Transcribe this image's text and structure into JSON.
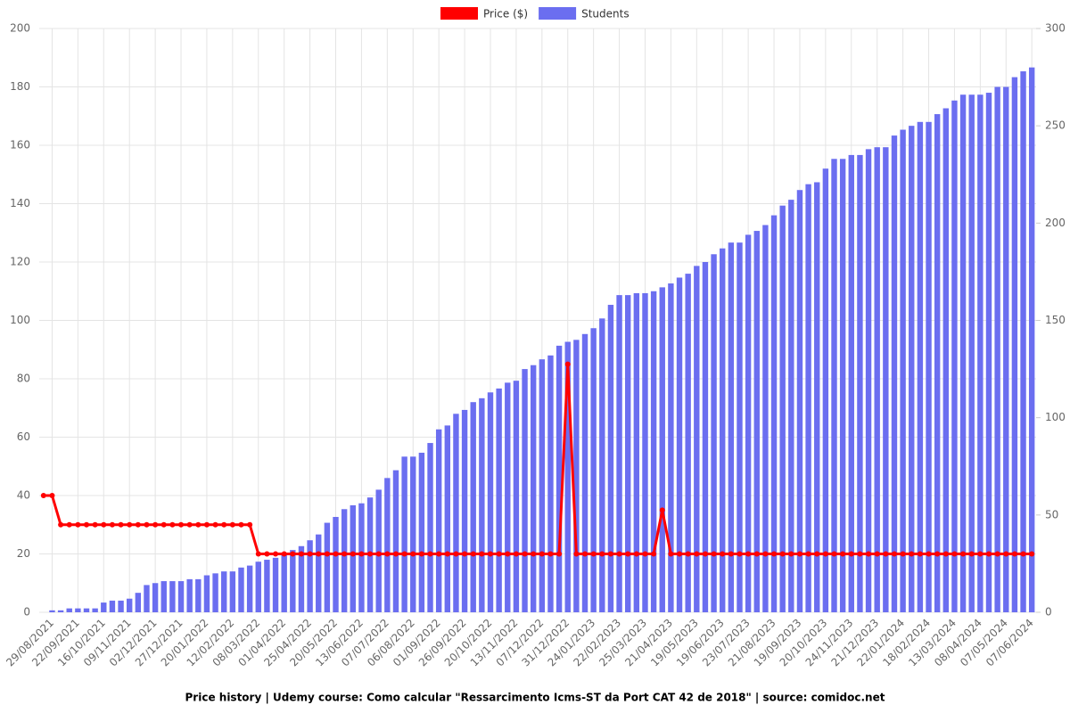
{
  "chart_data": {
    "type": "bar",
    "title": "Price history | Udemy course: Como calcular \"Ressarcimento Icms-ST da Port CAT 42 de 2018\" | source: comidoc.net",
    "categories": [
      null,
      "29/08/2021",
      null,
      null,
      "22/09/2021",
      null,
      null,
      "16/10/2021",
      null,
      null,
      "09/11/2021",
      null,
      null,
      "02/12/2021",
      null,
      null,
      "27/12/2021",
      null,
      null,
      "20/01/2022",
      null,
      null,
      "12/02/2022",
      null,
      null,
      "08/03/2022",
      null,
      null,
      "01/04/2022",
      null,
      null,
      "25/04/2022",
      null,
      null,
      "20/05/2022",
      null,
      null,
      "13/06/2022",
      null,
      null,
      "07/07/2022",
      null,
      null,
      "06/08/2022",
      null,
      null,
      "01/09/2022",
      null,
      null,
      "26/09/2022",
      null,
      null,
      "20/10/2022",
      null,
      null,
      "13/11/2022",
      null,
      null,
      "07/12/2022",
      null,
      null,
      "31/12/2022",
      null,
      null,
      "24/01/2023",
      null,
      null,
      "22/02/2023",
      null,
      null,
      "25/03/2023",
      null,
      null,
      "21/04/2023",
      null,
      null,
      "19/05/2023",
      null,
      null,
      "19/06/2023",
      null,
      null,
      "23/07/2023",
      null,
      null,
      "21/08/2023",
      null,
      null,
      "19/09/2023",
      null,
      null,
      "20/10/2023",
      null,
      null,
      "24/11/2023",
      null,
      null,
      "21/12/2023",
      null,
      null,
      "22/01/2024",
      null,
      null,
      "18/02/2024",
      null,
      null,
      "13/03/2024",
      null,
      null,
      "08/04/2024",
      null,
      null,
      "07/05/2024",
      null,
      null,
      "07/06/2024"
    ],
    "series": [
      {
        "name": "Price ($)",
        "type": "line",
        "color": "#ff0000",
        "values": [
          40,
          40,
          30,
          30,
          30,
          30,
          30,
          30,
          30,
          30,
          30,
          30,
          30,
          30,
          30,
          30,
          30,
          30,
          30,
          30,
          30,
          30,
          30,
          30,
          30,
          20,
          20,
          20,
          20,
          20,
          20,
          20,
          20,
          20,
          20,
          20,
          20,
          20,
          20,
          20,
          20,
          20,
          20,
          20,
          20,
          20,
          20,
          20,
          20,
          20,
          20,
          20,
          20,
          20,
          20,
          20,
          20,
          20,
          20,
          20,
          20,
          85,
          20,
          20,
          20,
          20,
          20,
          20,
          20,
          20,
          20,
          20,
          35,
          20,
          20,
          20,
          20,
          20,
          20,
          20,
          20,
          20,
          20,
          20,
          20,
          20,
          20,
          20,
          20,
          20,
          20,
          20,
          20,
          20,
          20,
          20,
          20,
          20,
          20,
          20,
          20,
          20,
          20,
          20,
          20,
          20,
          20,
          20,
          20,
          20,
          20,
          20,
          20,
          20,
          20,
          20
        ]
      },
      {
        "name": "Students",
        "type": "bar",
        "axis": "y2",
        "color": "#6b6ef0",
        "values": [
          0,
          1,
          1,
          2,
          2,
          2,
          2,
          5,
          6,
          6,
          7,
          10,
          14,
          15,
          16,
          16,
          16,
          17,
          17,
          19,
          20,
          21,
          21,
          23,
          24,
          26,
          27,
          28,
          30,
          32,
          34,
          37,
          40,
          46,
          49,
          53,
          55,
          56,
          59,
          63,
          69,
          73,
          80,
          80,
          82,
          87,
          94,
          96,
          102,
          104,
          108,
          110,
          113,
          115,
          118,
          119,
          125,
          127,
          130,
          132,
          137,
          139,
          140,
          143,
          146,
          151,
          158,
          163,
          163,
          164,
          164,
          165,
          167,
          169,
          172,
          174,
          178,
          180,
          184,
          187,
          190,
          190,
          194,
          196,
          199,
          204,
          209,
          212,
          217,
          220,
          221,
          228,
          233,
          233,
          235,
          235,
          238,
          239,
          239,
          245,
          248,
          250,
          252,
          252,
          256,
          259,
          263,
          266,
          266,
          266,
          267,
          270,
          270,
          275,
          278,
          280
        ]
      }
    ],
    "ylim": [
      0,
      200
    ],
    "yticks": [
      0,
      20,
      40,
      60,
      80,
      100,
      120,
      140,
      160,
      180,
      200
    ],
    "y2lim": [
      0,
      300
    ],
    "y2ticks": [
      0,
      50,
      100,
      150,
      200,
      250,
      300
    ],
    "grid": true,
    "legend": "top"
  }
}
